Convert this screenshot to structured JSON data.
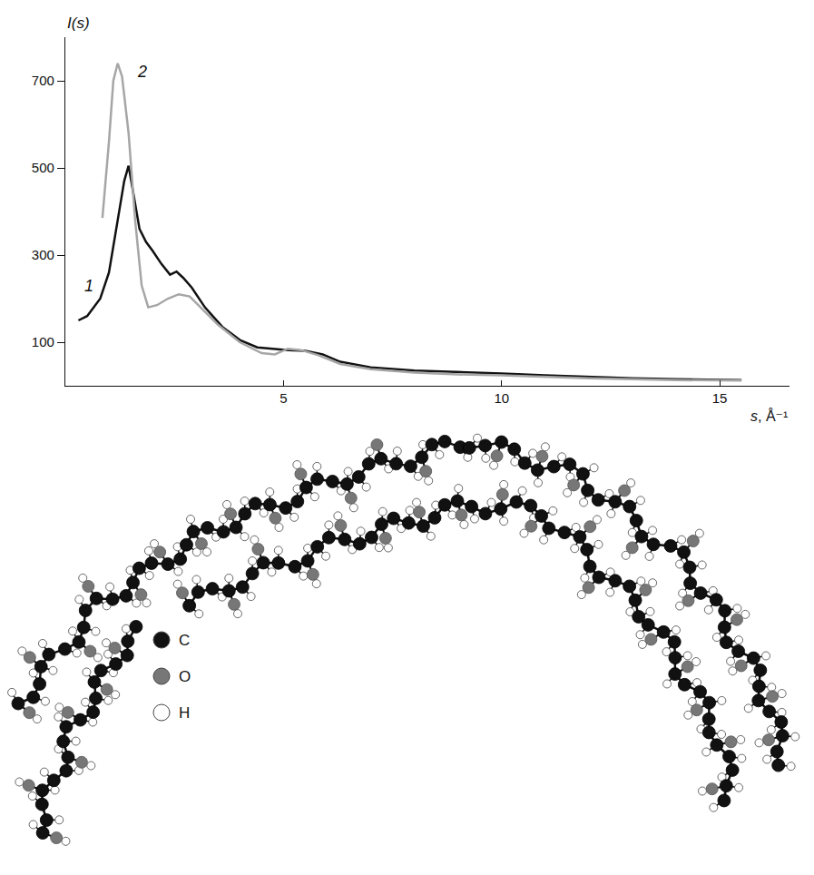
{
  "chart_data": {
    "type": "line",
    "y_label": "I(s)",
    "x_label": "s, Å⁻¹",
    "xlim": [
      0,
      16.6
    ],
    "xticks": [
      5,
      10,
      15
    ],
    "ylim": [
      0,
      800
    ],
    "yticks": [
      100,
      300,
      500,
      700
    ],
    "grid": false,
    "series": [
      {
        "name": "1",
        "color": "#111111",
        "x": [
          0.3,
          0.5,
          0.8,
          1.0,
          1.2,
          1.35,
          1.45,
          1.55,
          1.7,
          1.85,
          2.0,
          2.2,
          2.4,
          2.55,
          2.7,
          2.9,
          3.2,
          3.6,
          4.0,
          4.4,
          4.8,
          5.1,
          5.5,
          5.9,
          6.3,
          7,
          8,
          9,
          10,
          11,
          12,
          13,
          14,
          15.5
        ],
        "values": [
          150,
          160,
          200,
          260,
          380,
          470,
          505,
          450,
          360,
          330,
          310,
          280,
          255,
          262,
          248,
          225,
          180,
          135,
          105,
          88,
          84,
          82,
          80,
          72,
          55,
          42,
          35,
          32,
          28,
          24,
          20,
          17,
          15,
          13
        ]
      },
      {
        "name": "2",
        "color": "#a6a6a6",
        "x": [
          0.85,
          1.0,
          1.1,
          1.2,
          1.3,
          1.45,
          1.6,
          1.75,
          1.9,
          2.1,
          2.35,
          2.6,
          2.85,
          3.1,
          3.5,
          4.0,
          4.5,
          4.8,
          5.1,
          5.4,
          5.8,
          6.3,
          7,
          8,
          9,
          10,
          11,
          12,
          13,
          14,
          15.5
        ],
        "values": [
          385,
          560,
          700,
          740,
          710,
          580,
          380,
          230,
          180,
          185,
          200,
          210,
          205,
          180,
          140,
          100,
          75,
          72,
          85,
          82,
          70,
          50,
          38,
          30,
          26,
          24,
          20,
          17,
          15,
          13,
          12
        ]
      }
    ],
    "annotations": [
      {
        "text": "1",
        "x": 0.55,
        "y": 230
      },
      {
        "text": "2",
        "x": 1.75,
        "y": 720
      }
    ]
  },
  "molecule": {
    "legend": [
      {
        "label": "C",
        "color": "#111111"
      },
      {
        "label": "O",
        "color": "#777777"
      },
      {
        "label": "H",
        "color": "#ffffff"
      }
    ]
  }
}
